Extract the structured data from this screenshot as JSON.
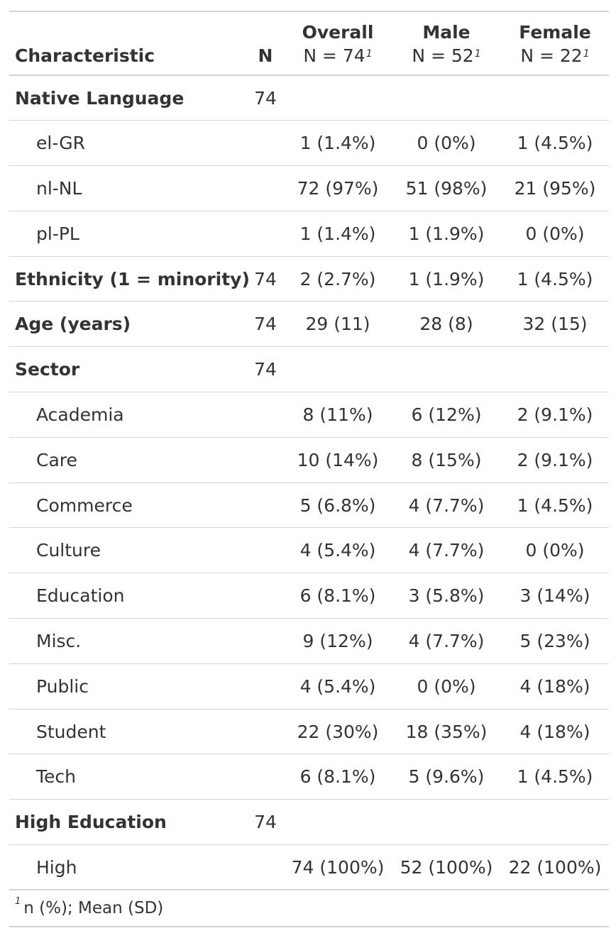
{
  "table": {
    "headers": {
      "characteristic": "Characteristic",
      "n": "N",
      "overall": {
        "name": "Overall",
        "n_label": "N = 74",
        "footnote_mark": "1"
      },
      "male": {
        "name": "Male",
        "n_label": "N = 52",
        "footnote_mark": "1"
      },
      "female": {
        "name": "Female",
        "n_label": "N = 22",
        "footnote_mark": "1"
      }
    },
    "rows": [
      {
        "label": "Native Language",
        "n": "74",
        "overall": "",
        "male": "",
        "female": ""
      },
      {
        "label": "el-GR",
        "n": "",
        "overall": "1 (1.4%)",
        "male": "0 (0%)",
        "female": "1 (4.5%)"
      },
      {
        "label": "nl-NL",
        "n": "",
        "overall": "72 (97%)",
        "male": "51 (98%)",
        "female": "21 (95%)"
      },
      {
        "label": "pl-PL",
        "n": "",
        "overall": "1 (1.4%)",
        "male": "1 (1.9%)",
        "female": "0 (0%)"
      },
      {
        "label": "Ethnicity (1 = minority)",
        "n": "74",
        "overall": "2 (2.7%)",
        "male": "1 (1.9%)",
        "female": "1 (4.5%)"
      },
      {
        "label": "Age (years)",
        "n": "74",
        "overall": "29 (11)",
        "male": "28 (8)",
        "female": "32 (15)"
      },
      {
        "label": "Sector",
        "n": "74",
        "overall": "",
        "male": "",
        "female": ""
      },
      {
        "label": "Academia",
        "n": "",
        "overall": "8 (11%)",
        "male": "6 (12%)",
        "female": "2 (9.1%)"
      },
      {
        "label": "Care",
        "n": "",
        "overall": "10 (14%)",
        "male": "8 (15%)",
        "female": "2 (9.1%)"
      },
      {
        "label": "Commerce",
        "n": "",
        "overall": "5 (6.8%)",
        "male": "4 (7.7%)",
        "female": "1 (4.5%)"
      },
      {
        "label": "Culture",
        "n": "",
        "overall": "4 (5.4%)",
        "male": "4 (7.7%)",
        "female": "0 (0%)"
      },
      {
        "label": "Education",
        "n": "",
        "overall": "6 (8.1%)",
        "male": "3 (5.8%)",
        "female": "3 (14%)"
      },
      {
        "label": "Misc.",
        "n": "",
        "overall": "9 (12%)",
        "male": "4 (7.7%)",
        "female": "5 (23%)"
      },
      {
        "label": "Public",
        "n": "",
        "overall": "4 (5.4%)",
        "male": "0 (0%)",
        "female": "4 (18%)"
      },
      {
        "label": "Student",
        "n": "",
        "overall": "22 (30%)",
        "male": "18 (35%)",
        "female": "4 (18%)"
      },
      {
        "label": "Tech",
        "n": "",
        "overall": "6 (8.1%)",
        "male": "5 (9.6%)",
        "female": "1 (4.5%)"
      },
      {
        "label": "High Education",
        "n": "74",
        "overall": "",
        "male": "",
        "female": ""
      },
      {
        "label": "High",
        "n": "",
        "overall": "74 (100%)",
        "male": "52 (100%)",
        "female": "22 (100%)"
      }
    ],
    "footnote": {
      "mark": "1",
      "text": "n (%); Mean (SD)"
    }
  }
}
